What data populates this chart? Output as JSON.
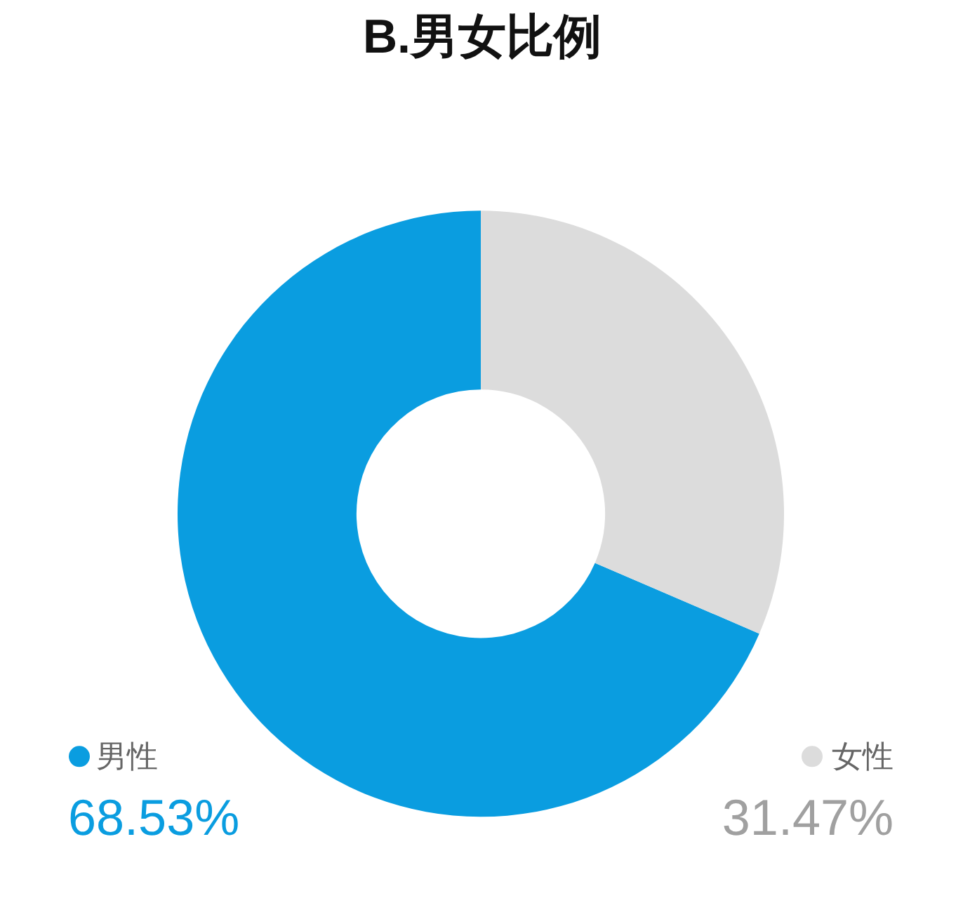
{
  "chart_data": {
    "type": "donut",
    "title": "B.男女比例",
    "categories": [
      "男性",
      "女性"
    ],
    "values": [
      68.53,
      31.47
    ],
    "colors": [
      "#0a9de0",
      "#dcdcdc"
    ],
    "value_labels": [
      "68.53%",
      "31.47%"
    ],
    "legend": "bottom"
  }
}
